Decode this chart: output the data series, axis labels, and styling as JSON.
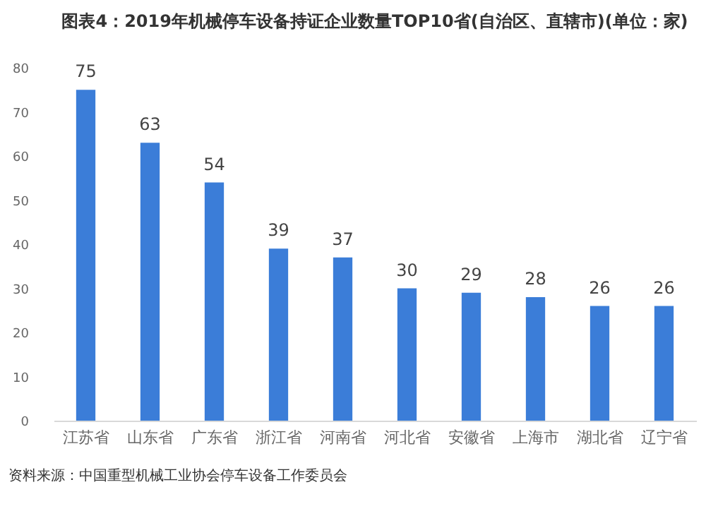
{
  "chart_data": {
    "type": "bar",
    "title": "图表4：2019年机械停车设备持证企业数量TOP10省(自治区、直辖市)(单位：家)",
    "categories": [
      "江苏省",
      "山东省",
      "广东省",
      "浙江省",
      "河南省",
      "河北省",
      "安徽省",
      "上海市",
      "湖北省",
      "辽宁省"
    ],
    "values": [
      75,
      63,
      54,
      39,
      37,
      30,
      29,
      28,
      26,
      26
    ],
    "color": "#3b7dd8",
    "ylim": [
      0,
      80
    ],
    "yticks": [
      0,
      10,
      20,
      30,
      40,
      50,
      60,
      70,
      80
    ],
    "data_labels": true,
    "annotations": [
      "资料来源：中国重型机械工业协会停车设备工作委员会"
    ]
  }
}
